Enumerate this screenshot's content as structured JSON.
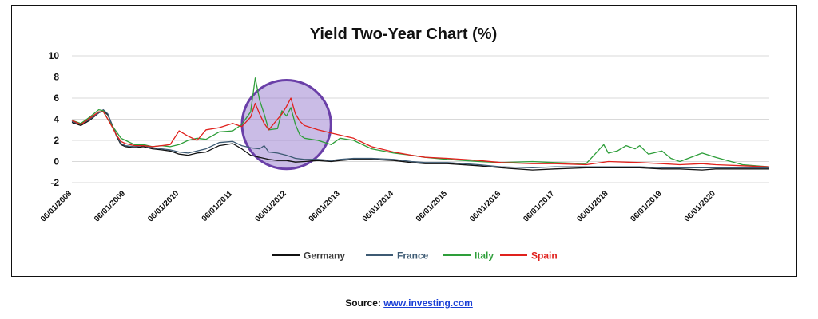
{
  "source": {
    "label": "Source:",
    "link_text": "www.investing.com"
  },
  "chart_data": {
    "type": "line",
    "title": "Yield Two-Year Chart (%)",
    "xlabel": "",
    "ylabel": "",
    "ylim": [
      -2,
      10
    ],
    "yticks": [
      -2,
      0,
      2,
      4,
      6,
      8,
      10
    ],
    "xlim": [
      "2008-06-01",
      "2021-06-01"
    ],
    "x_tick_labels": [
      "06/01/2008",
      "06/01/2009",
      "06/01/2010",
      "06/01/2011",
      "06/01/2012",
      "06/01/2013",
      "06/01/2014",
      "06/01/2015",
      "06/01/2016",
      "06/01/2017",
      "06/01/2018",
      "06/01/2019",
      "06/01/2020"
    ],
    "x_tick_dates": [
      "2008-06-01",
      "2009-06-01",
      "2010-06-01",
      "2011-06-01",
      "2012-06-01",
      "2013-06-01",
      "2014-06-01",
      "2015-06-01",
      "2016-06-01",
      "2017-06-01",
      "2018-06-01",
      "2019-06-01",
      "2020-06-01"
    ],
    "grid": true,
    "legend_position": "bottom",
    "highlight_circle": {
      "center_date": "2012-06-01",
      "center_value": 3.5,
      "radius_value": 4.2,
      "fill": "#8a6bc7",
      "stroke": "#6a3fa8"
    },
    "series": [
      {
        "name": "Germany",
        "color": "#111111",
        "points": [
          [
            "2008-06-01",
            3.7
          ],
          [
            "2008-08-01",
            3.4
          ],
          [
            "2008-10-01",
            3.9
          ],
          [
            "2008-12-01",
            4.6
          ],
          [
            "2009-01-01",
            4.8
          ],
          [
            "2009-02-01",
            4.4
          ],
          [
            "2009-03-01",
            3.5
          ],
          [
            "2009-04-01",
            2.4
          ],
          [
            "2009-05-01",
            1.6
          ],
          [
            "2009-06-01",
            1.4
          ],
          [
            "2009-08-01",
            1.3
          ],
          [
            "2009-10-01",
            1.4
          ],
          [
            "2009-12-01",
            1.2
          ],
          [
            "2010-02-01",
            1.1
          ],
          [
            "2010-04-01",
            1.0
          ],
          [
            "2010-06-01",
            0.7
          ],
          [
            "2010-08-01",
            0.6
          ],
          [
            "2010-10-01",
            0.8
          ],
          [
            "2010-12-01",
            0.9
          ],
          [
            "2011-03-01",
            1.5
          ],
          [
            "2011-06-01",
            1.7
          ],
          [
            "2011-08-01",
            1.2
          ],
          [
            "2011-10-01",
            0.6
          ],
          [
            "2011-12-01",
            0.4
          ],
          [
            "2012-02-01",
            0.2
          ],
          [
            "2012-04-01",
            0.1
          ],
          [
            "2012-06-01",
            0.1
          ],
          [
            "2012-08-01",
            -0.05
          ],
          [
            "2012-10-01",
            0.0
          ],
          [
            "2013-01-01",
            0.1
          ],
          [
            "2013-04-01",
            0.0
          ],
          [
            "2013-06-01",
            0.1
          ],
          [
            "2013-09-01",
            0.2
          ],
          [
            "2014-01-01",
            0.2
          ],
          [
            "2014-06-01",
            0.1
          ],
          [
            "2014-10-01",
            -0.1
          ],
          [
            "2015-01-01",
            -0.2
          ],
          [
            "2015-06-01",
            -0.2
          ],
          [
            "2016-01-01",
            -0.4
          ],
          [
            "2016-06-01",
            -0.6
          ],
          [
            "2017-01-01",
            -0.8
          ],
          [
            "2017-06-01",
            -0.7
          ],
          [
            "2018-01-01",
            -0.6
          ],
          [
            "2018-06-01",
            -0.6
          ],
          [
            "2019-01-01",
            -0.6
          ],
          [
            "2019-06-01",
            -0.7
          ],
          [
            "2019-10-01",
            -0.7
          ],
          [
            "2020-03-01",
            -0.8
          ],
          [
            "2020-06-01",
            -0.7
          ],
          [
            "2020-12-01",
            -0.7
          ],
          [
            "2021-06-01",
            -0.7
          ]
        ]
      },
      {
        "name": "France",
        "color": "#3d5a73",
        "points": [
          [
            "2008-06-01",
            3.8
          ],
          [
            "2008-08-01",
            3.5
          ],
          [
            "2008-10-01",
            4.0
          ],
          [
            "2008-12-01",
            4.6
          ],
          [
            "2009-01-01",
            4.9
          ],
          [
            "2009-02-01",
            4.5
          ],
          [
            "2009-03-01",
            3.5
          ],
          [
            "2009-04-01",
            2.5
          ],
          [
            "2009-05-01",
            1.7
          ],
          [
            "2009-06-01",
            1.5
          ],
          [
            "2009-08-01",
            1.4
          ],
          [
            "2009-10-01",
            1.5
          ],
          [
            "2009-12-01",
            1.3
          ],
          [
            "2010-02-01",
            1.2
          ],
          [
            "2010-04-01",
            1.1
          ],
          [
            "2010-06-01",
            0.9
          ],
          [
            "2010-08-01",
            0.8
          ],
          [
            "2010-10-01",
            1.0
          ],
          [
            "2010-12-01",
            1.2
          ],
          [
            "2011-03-01",
            1.8
          ],
          [
            "2011-06-01",
            1.9
          ],
          [
            "2011-08-01",
            1.5
          ],
          [
            "2011-10-01",
            1.3
          ],
          [
            "2011-12-01",
            1.2
          ],
          [
            "2012-01-01",
            1.5
          ],
          [
            "2012-02-01",
            0.9
          ],
          [
            "2012-04-01",
            0.8
          ],
          [
            "2012-06-01",
            0.6
          ],
          [
            "2012-08-01",
            0.3
          ],
          [
            "2012-10-01",
            0.2
          ],
          [
            "2013-01-01",
            0.2
          ],
          [
            "2013-04-01",
            0.1
          ],
          [
            "2013-06-01",
            0.2
          ],
          [
            "2013-09-01",
            0.3
          ],
          [
            "2014-01-01",
            0.3
          ],
          [
            "2014-06-01",
            0.2
          ],
          [
            "2014-10-01",
            0.0
          ],
          [
            "2015-01-01",
            -0.1
          ],
          [
            "2015-06-01",
            -0.1
          ],
          [
            "2016-01-01",
            -0.3
          ],
          [
            "2016-06-01",
            -0.5
          ],
          [
            "2017-01-01",
            -0.6
          ],
          [
            "2017-06-01",
            -0.5
          ],
          [
            "2018-01-01",
            -0.5
          ],
          [
            "2018-06-01",
            -0.5
          ],
          [
            "2019-01-01",
            -0.5
          ],
          [
            "2019-06-01",
            -0.6
          ],
          [
            "2019-10-01",
            -0.6
          ],
          [
            "2020-03-01",
            -0.6
          ],
          [
            "2020-06-01",
            -0.6
          ],
          [
            "2020-12-01",
            -0.6
          ],
          [
            "2021-06-01",
            -0.6
          ]
        ]
      },
      {
        "name": "Italy",
        "color": "#2e9e3a",
        "points": [
          [
            "2008-06-01",
            3.9
          ],
          [
            "2008-08-01",
            3.6
          ],
          [
            "2008-10-01",
            4.2
          ],
          [
            "2008-12-01",
            4.9
          ],
          [
            "2009-01-01",
            4.8
          ],
          [
            "2009-02-01",
            4.0
          ],
          [
            "2009-03-01",
            3.4
          ],
          [
            "2009-04-01",
            2.8
          ],
          [
            "2009-05-01",
            2.2
          ],
          [
            "2009-06-01",
            2.0
          ],
          [
            "2009-08-01",
            1.6
          ],
          [
            "2009-10-01",
            1.6
          ],
          [
            "2009-12-01",
            1.4
          ],
          [
            "2010-02-01",
            1.5
          ],
          [
            "2010-04-01",
            1.4
          ],
          [
            "2010-06-01",
            1.6
          ],
          [
            "2010-08-01",
            2.0
          ],
          [
            "2010-10-01",
            2.2
          ],
          [
            "2010-12-01",
            2.1
          ],
          [
            "2011-03-01",
            2.8
          ],
          [
            "2011-06-01",
            2.9
          ],
          [
            "2011-08-01",
            3.5
          ],
          [
            "2011-10-01",
            4.7
          ],
          [
            "2011-11-01",
            7.9
          ],
          [
            "2011-12-01",
            5.8
          ],
          [
            "2012-01-01",
            4.5
          ],
          [
            "2012-02-01",
            3.0
          ],
          [
            "2012-04-01",
            3.1
          ],
          [
            "2012-05-01",
            4.8
          ],
          [
            "2012-06-01",
            4.3
          ],
          [
            "2012-07-01",
            5.1
          ],
          [
            "2012-08-01",
            3.5
          ],
          [
            "2012-09-01",
            2.5
          ],
          [
            "2012-10-01",
            2.2
          ],
          [
            "2013-01-01",
            2.0
          ],
          [
            "2013-04-01",
            1.6
          ],
          [
            "2013-06-01",
            2.2
          ],
          [
            "2013-09-01",
            2.0
          ],
          [
            "2014-01-01",
            1.2
          ],
          [
            "2014-06-01",
            0.8
          ],
          [
            "2014-10-01",
            0.6
          ],
          [
            "2015-01-01",
            0.4
          ],
          [
            "2015-06-01",
            0.2
          ],
          [
            "2016-01-01",
            0.0
          ],
          [
            "2016-06-01",
            -0.1
          ],
          [
            "2017-01-01",
            0.0
          ],
          [
            "2017-06-01",
            -0.1
          ],
          [
            "2018-01-01",
            -0.2
          ],
          [
            "2018-05-01",
            1.6
          ],
          [
            "2018-06-01",
            0.8
          ],
          [
            "2018-08-01",
            1.0
          ],
          [
            "2018-10-01",
            1.5
          ],
          [
            "2018-12-01",
            1.2
          ],
          [
            "2019-01-01",
            1.5
          ],
          [
            "2019-03-01",
            0.7
          ],
          [
            "2019-06-01",
            1.0
          ],
          [
            "2019-08-01",
            0.3
          ],
          [
            "2019-10-01",
            0.0
          ],
          [
            "2020-03-01",
            0.8
          ],
          [
            "2020-06-01",
            0.4
          ],
          [
            "2020-12-01",
            -0.3
          ],
          [
            "2021-06-01",
            -0.5
          ]
        ]
      },
      {
        "name": "Spain",
        "color": "#e0211d",
        "points": [
          [
            "2008-06-01",
            3.9
          ],
          [
            "2008-08-01",
            3.5
          ],
          [
            "2008-10-01",
            4.1
          ],
          [
            "2008-12-01",
            4.7
          ],
          [
            "2009-01-01",
            4.7
          ],
          [
            "2009-02-01",
            4.0
          ],
          [
            "2009-03-01",
            3.3
          ],
          [
            "2009-04-01",
            2.5
          ],
          [
            "2009-05-01",
            1.9
          ],
          [
            "2009-06-01",
            1.7
          ],
          [
            "2009-08-01",
            1.5
          ],
          [
            "2009-10-01",
            1.5
          ],
          [
            "2009-12-01",
            1.4
          ],
          [
            "2010-02-01",
            1.5
          ],
          [
            "2010-04-01",
            1.6
          ],
          [
            "2010-06-01",
            2.9
          ],
          [
            "2010-08-01",
            2.4
          ],
          [
            "2010-10-01",
            2.0
          ],
          [
            "2010-12-01",
            3.0
          ],
          [
            "2011-03-01",
            3.2
          ],
          [
            "2011-06-01",
            3.6
          ],
          [
            "2011-08-01",
            3.3
          ],
          [
            "2011-10-01",
            4.2
          ],
          [
            "2011-11-01",
            5.5
          ],
          [
            "2011-12-01",
            4.5
          ],
          [
            "2012-01-01",
            3.6
          ],
          [
            "2012-02-01",
            3.0
          ],
          [
            "2012-04-01",
            4.0
          ],
          [
            "2012-05-01",
            4.5
          ],
          [
            "2012-06-01",
            5.2
          ],
          [
            "2012-07-01",
            6.0
          ],
          [
            "2012-08-01",
            4.5
          ],
          [
            "2012-09-01",
            3.8
          ],
          [
            "2012-10-01",
            3.4
          ],
          [
            "2013-01-01",
            3.0
          ],
          [
            "2013-04-01",
            2.7
          ],
          [
            "2013-06-01",
            2.5
          ],
          [
            "2013-09-01",
            2.2
          ],
          [
            "2014-01-01",
            1.4
          ],
          [
            "2014-06-01",
            0.9
          ],
          [
            "2014-10-01",
            0.6
          ],
          [
            "2015-01-01",
            0.4
          ],
          [
            "2015-06-01",
            0.3
          ],
          [
            "2016-01-01",
            0.1
          ],
          [
            "2016-06-01",
            -0.1
          ],
          [
            "2017-01-01",
            -0.2
          ],
          [
            "2017-06-01",
            -0.2
          ],
          [
            "2018-01-01",
            -0.3
          ],
          [
            "2018-06-01",
            0.0
          ],
          [
            "2019-01-01",
            -0.1
          ],
          [
            "2019-06-01",
            -0.2
          ],
          [
            "2019-10-01",
            -0.3
          ],
          [
            "2020-03-01",
            -0.2
          ],
          [
            "2020-06-01",
            -0.3
          ],
          [
            "2020-12-01",
            -0.4
          ],
          [
            "2021-06-01",
            -0.5
          ]
        ]
      }
    ]
  }
}
